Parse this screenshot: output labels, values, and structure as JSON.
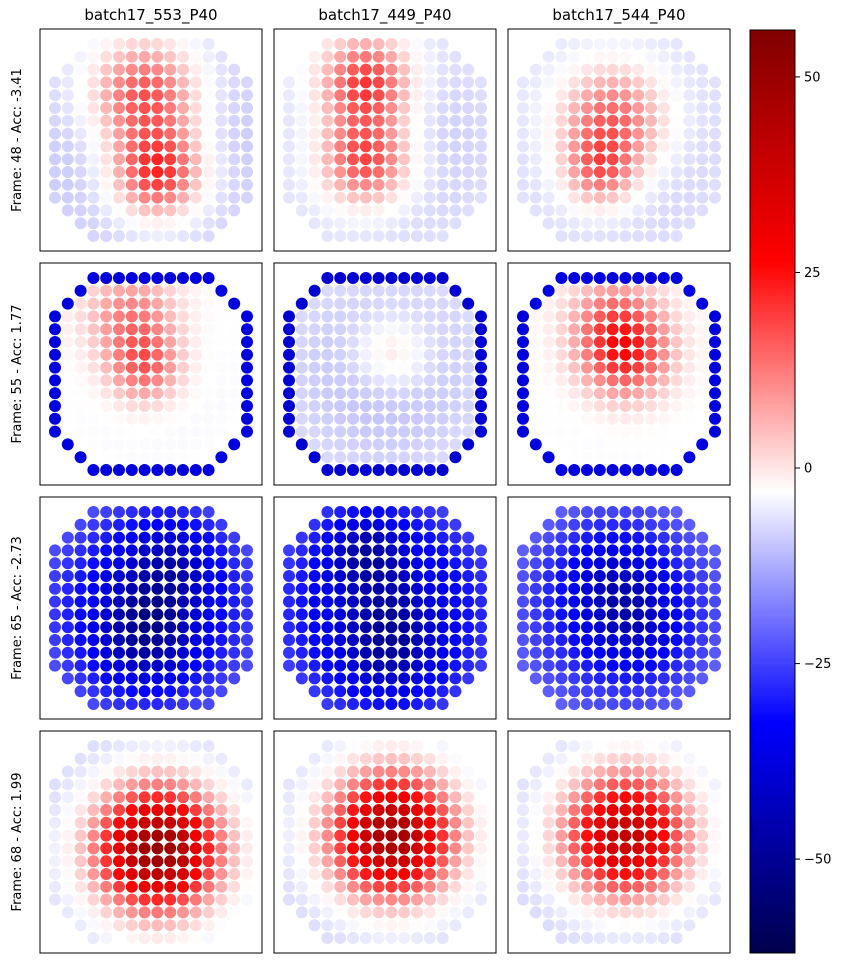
{
  "chart_data": {
    "type": "heatmap",
    "columns": [
      "batch17_553_P40",
      "batch17_449_P40",
      "batch17_544_P40"
    ],
    "rows": [
      "Frame: 48 - Acc: -3.41",
      "Frame: 55 - Acc: 1.77",
      "Frame: 65 - Acc: -2.73",
      "Frame: 68 - Acc: 1.99"
    ],
    "grid_size": 16,
    "colormap": "seismic",
    "colorbar": {
      "vmin": -62,
      "vmax": 56,
      "ticks": [
        50,
        25,
        0,
        -25,
        -50
      ],
      "tick_labels": [
        "50",
        "25",
        "0",
        "−25",
        "−50"
      ]
    },
    "panels": [
      [
        {
          "base": -15,
          "edge": 0,
          "blobs": [
            [
              4,
              7,
              3.0,
              28
            ],
            [
              10,
              8,
              2.5,
              32
            ]
          ]
        },
        {
          "base": -12,
          "edge": 0,
          "blobs": [
            [
              3,
              6,
              2.5,
              28
            ],
            [
              9,
              6,
              2.5,
              28
            ]
          ]
        },
        {
          "base": -12,
          "edge": 0,
          "blobs": [
            [
              6,
              7,
              3.0,
              25
            ],
            [
              10,
              6,
              2.0,
              18
            ]
          ]
        }
      ],
      [
        {
          "base": -5,
          "edge": -38,
          "blobs": [
            [
              3,
              6,
              2.5,
              15
            ],
            [
              7,
              7,
              2.0,
              18
            ]
          ]
        },
        {
          "base": -12,
          "edge": -40,
          "blobs": [
            [
              6,
              8,
              2.0,
              10
            ]
          ]
        },
        {
          "base": -5,
          "edge": -38,
          "blobs": [
            [
              6,
              8,
              2.5,
              25
            ],
            [
              3,
              7,
              2.5,
              12
            ]
          ]
        }
      ],
      [
        {
          "base": -42,
          "edge": 0,
          "blobs": [
            [
              4,
              9,
              2.5,
              -12
            ],
            [
              10,
              7,
              2.5,
              -14
            ]
          ]
        },
        {
          "base": -45,
          "edge": 0,
          "blobs": [
            [
              3,
              6,
              2.0,
              -14
            ],
            [
              11,
              8,
              2.5,
              -12
            ]
          ]
        },
        {
          "base": -38,
          "edge": 0,
          "blobs": [
            [
              5,
              7,
              2.5,
              -8
            ],
            [
              9,
              9,
              2.5,
              -8
            ]
          ]
        }
      ],
      [
        {
          "base": -15,
          "edge": 0,
          "blobs": [
            [
              8,
              8,
              3.5,
              65
            ]
          ]
        },
        {
          "base": -15,
          "edge": 0,
          "blobs": [
            [
              7,
              8,
              3.5,
              62
            ]
          ]
        },
        {
          "base": -15,
          "edge": 0,
          "blobs": [
            [
              7,
              8,
              3.5,
              55
            ]
          ]
        }
      ]
    ]
  }
}
